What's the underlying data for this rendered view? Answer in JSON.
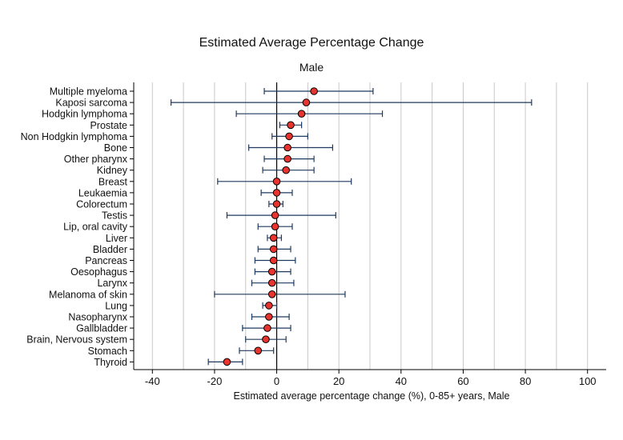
{
  "chart_data": {
    "type": "forest",
    "title": "Estimated Average Percentage Change",
    "subtitle": "Male",
    "xlabel": "Estimated average percentage change (%), 0-85+ years, Male",
    "xlim": [
      -46,
      106
    ],
    "xticks": [
      -40,
      -20,
      0,
      20,
      40,
      60,
      80,
      100
    ],
    "xtick_labels": [
      "-40",
      "-20",
      "0",
      "20",
      "40",
      "60",
      "80",
      "100"
    ],
    "gridlines": "vertical",
    "reference_line": 0,
    "colors": {
      "point": "#e8342f",
      "whisker": "#1f3a5f",
      "grid": "#c8c8c8"
    },
    "rows": [
      {
        "label": "Multiple myeloma",
        "estimate": 12,
        "lower": -4,
        "upper": 31
      },
      {
        "label": "Kaposi sarcoma",
        "estimate": 9.5,
        "lower": -34,
        "upper": 82
      },
      {
        "label": "Hodgkin lymphoma",
        "estimate": 8,
        "lower": -13,
        "upper": 34
      },
      {
        "label": "Prostate",
        "estimate": 4.5,
        "lower": 1,
        "upper": 8
      },
      {
        "label": "Non Hodgkin lymphoma",
        "estimate": 4,
        "lower": -1.5,
        "upper": 10
      },
      {
        "label": "Bone",
        "estimate": 3.5,
        "lower": -9,
        "upper": 18
      },
      {
        "label": "Other pharynx",
        "estimate": 3.5,
        "lower": -4,
        "upper": 12
      },
      {
        "label": "Kidney",
        "estimate": 3,
        "lower": -4.5,
        "upper": 12
      },
      {
        "label": "Breast",
        "estimate": 0,
        "lower": -19,
        "upper": 24
      },
      {
        "label": "Leukaemia",
        "estimate": 0,
        "lower": -5,
        "upper": 5
      },
      {
        "label": "Colorectum",
        "estimate": 0,
        "lower": -2.5,
        "upper": 2
      },
      {
        "label": "Testis",
        "estimate": -0.5,
        "lower": -16,
        "upper": 19
      },
      {
        "label": "Lip, oral cavity",
        "estimate": -0.5,
        "lower": -6,
        "upper": 5
      },
      {
        "label": "Liver",
        "estimate": -1,
        "lower": -3,
        "upper": 1.5
      },
      {
        "label": "Bladder",
        "estimate": -1,
        "lower": -6,
        "upper": 4.5
      },
      {
        "label": "Pancreas",
        "estimate": -1,
        "lower": -7,
        "upper": 6
      },
      {
        "label": "Oesophagus",
        "estimate": -1.5,
        "lower": -7,
        "upper": 4.5
      },
      {
        "label": "Larynx",
        "estimate": -1.5,
        "lower": -8,
        "upper": 5.5
      },
      {
        "label": "Melanoma of skin",
        "estimate": -1.5,
        "lower": -20,
        "upper": 22
      },
      {
        "label": "Lung",
        "estimate": -2.5,
        "lower": -4.5,
        "upper": 0
      },
      {
        "label": "Nasopharynx",
        "estimate": -2.5,
        "lower": -8,
        "upper": 4
      },
      {
        "label": "Gallbladder",
        "estimate": -3,
        "lower": -11,
        "upper": 4.5
      },
      {
        "label": "Brain, Nervous system",
        "estimate": -3.5,
        "lower": -10,
        "upper": 3
      },
      {
        "label": "Stomach",
        "estimate": -6,
        "lower": -12,
        "upper": -1
      },
      {
        "label": "Thyroid",
        "estimate": -16,
        "lower": -22,
        "upper": -11
      }
    ]
  }
}
